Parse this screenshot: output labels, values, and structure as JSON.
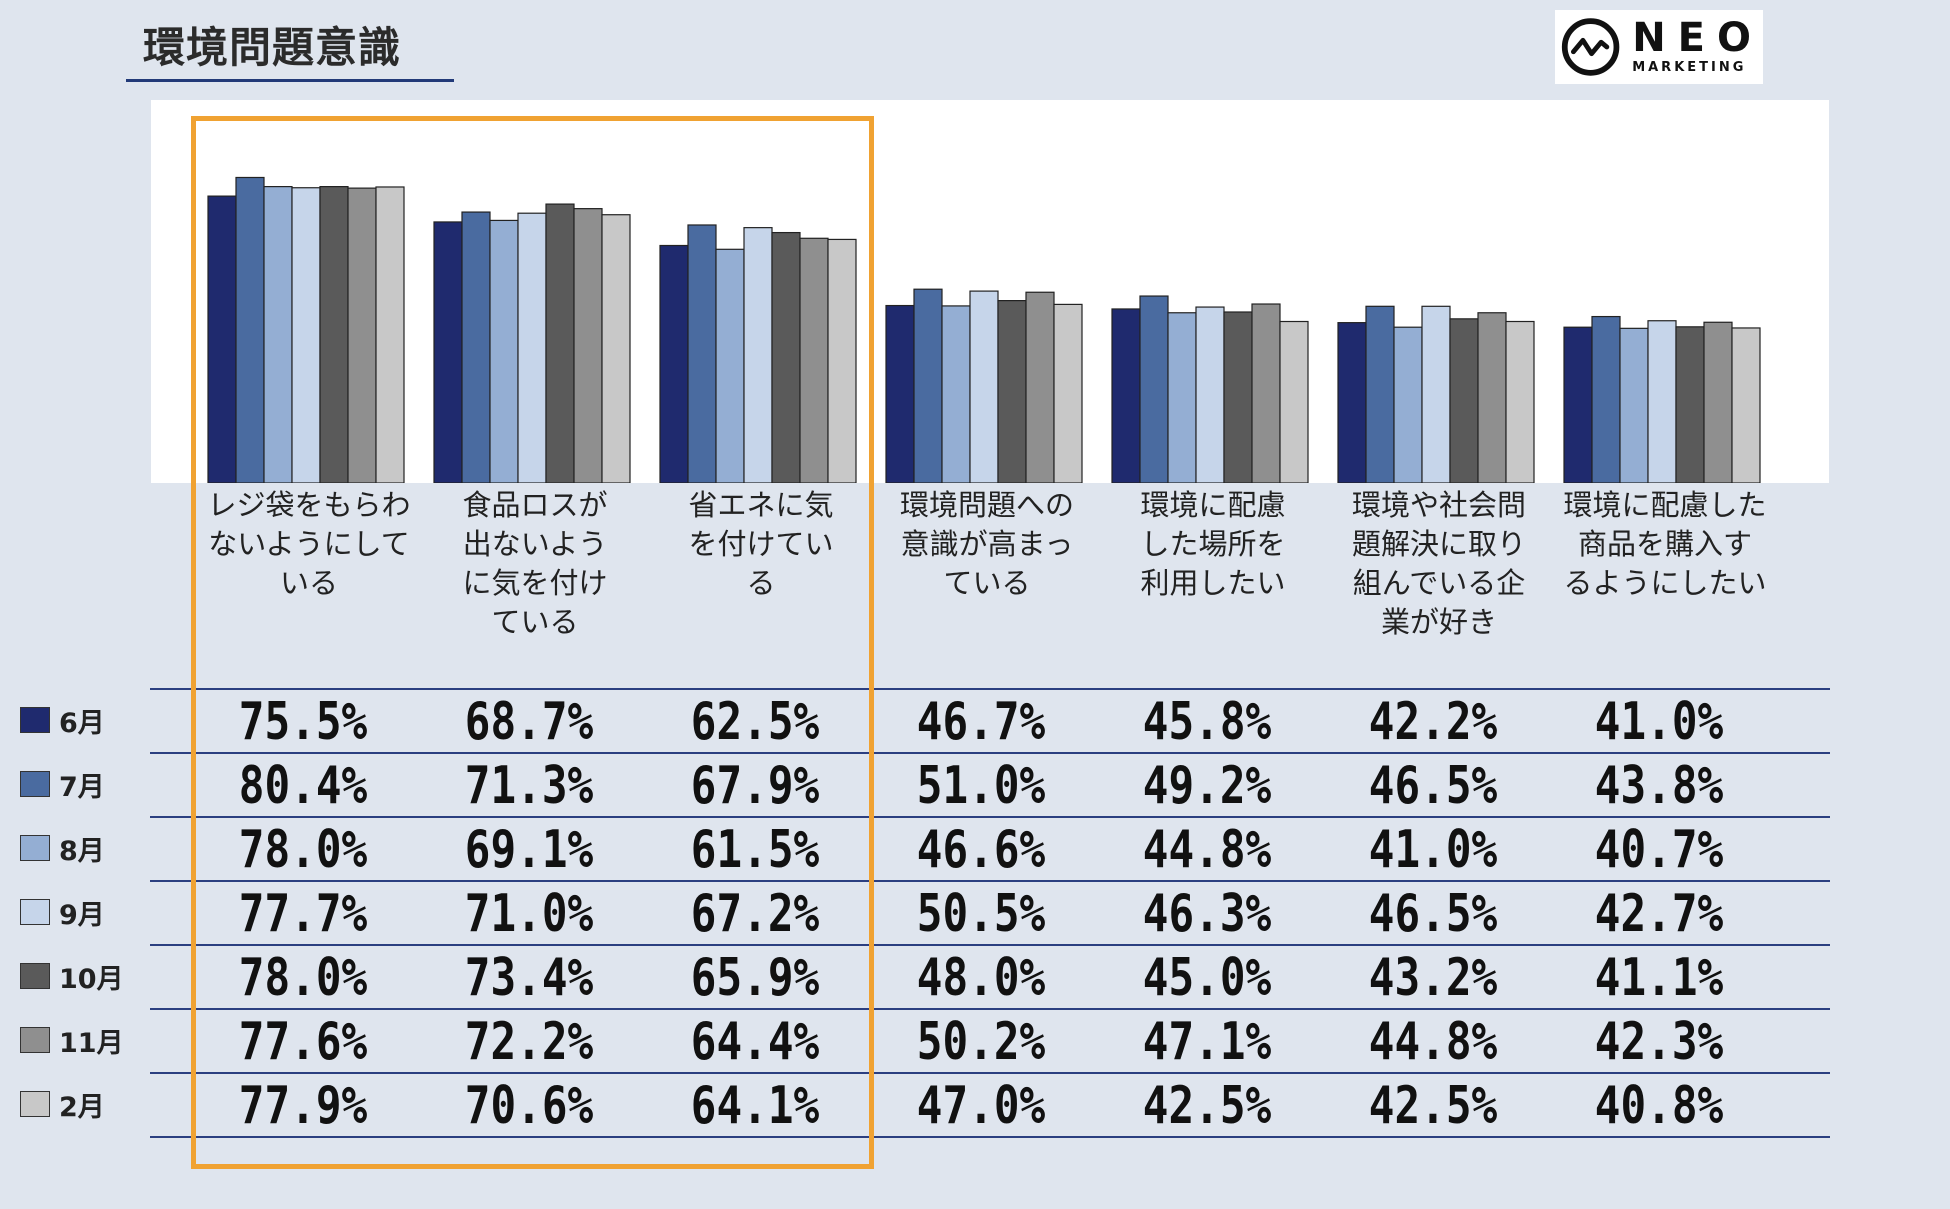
{
  "title": "環境問題意識",
  "logo": {
    "main": "NEO",
    "sub": "MARKETING"
  },
  "chart_data": {
    "type": "bar",
    "title": "環境問題意識",
    "categories": [
      "レジ袋をもらわないようにしている",
      "食品ロスが出ないように気を付けている",
      "省エネに気を付けている",
      "環境問題への意識が高まっている",
      "環境に配慮した場所を利用したい",
      "環境や社会問題解決に取り組んでいる企業が好き",
      "環境に配慮した商品を購入するようにしたい"
    ],
    "category_label_lines": [
      [
        "レジ袋をもらわ",
        "ないようにして",
        "いる"
      ],
      [
        "食品ロスが",
        "出ないよう",
        "に気を付け",
        "ている"
      ],
      [
        "省エネに気",
        "を付けてい",
        "る"
      ],
      [
        "環境問題への",
        "意識が高まっ",
        "ている"
      ],
      [
        "環境に配慮",
        "した場所を",
        "利用したい"
      ],
      [
        "環境や社会問",
        "題解決に取り",
        "組んでいる企",
        "業が好き"
      ],
      [
        "環境に配慮した",
        "商品を購入す",
        "るようにしたい"
      ]
    ],
    "series": [
      {
        "name": "6月",
        "color": "#1f2a6e",
        "values": [
          75.5,
          68.7,
          62.5,
          46.7,
          45.8,
          42.2,
          41.0
        ]
      },
      {
        "name": "7月",
        "color": "#4a6ba0",
        "values": [
          80.4,
          71.3,
          67.9,
          51.0,
          49.2,
          46.5,
          43.8
        ]
      },
      {
        "name": "8月",
        "color": "#94aed3",
        "values": [
          78.0,
          69.1,
          61.5,
          46.6,
          44.8,
          41.0,
          40.7
        ]
      },
      {
        "name": "9月",
        "color": "#c6d5ea",
        "values": [
          77.7,
          71.0,
          67.2,
          50.5,
          46.3,
          46.5,
          42.7
        ]
      },
      {
        "name": "10月",
        "color": "#5a5a5a",
        "values": [
          78.0,
          73.4,
          65.9,
          48.0,
          45.0,
          43.2,
          41.1
        ]
      },
      {
        "name": "11月",
        "color": "#8f8f8f",
        "values": [
          77.6,
          72.2,
          64.4,
          50.2,
          47.1,
          44.8,
          42.3
        ]
      },
      {
        "name": "2月",
        "color": "#c8c8c8",
        "values": [
          77.9,
          70.6,
          64.1,
          47.0,
          42.5,
          42.5,
          40.8
        ]
      }
    ],
    "value_labels": [
      [
        "75.5%",
        "68.7%",
        "62.5%",
        "46.7%",
        "45.8%",
        "42.2%",
        "41.0%"
      ],
      [
        "80.4%",
        "71.3%",
        "67.9%",
        "51.0%",
        "49.2%",
        "46.5%",
        "43.8%"
      ],
      [
        "78.0%",
        "69.1%",
        "61.5%",
        "46.6%",
        "44.8%",
        "41.0%",
        "40.7%"
      ],
      [
        "77.7%",
        "71.0%",
        "67.2%",
        "50.5%",
        "46.3%",
        "46.5%",
        "42.7%"
      ],
      [
        "78.0%",
        "73.4%",
        "65.9%",
        "48.0%",
        "45.0%",
        "43.2%",
        "41.1%"
      ],
      [
        "77.6%",
        "72.2%",
        "64.4%",
        "50.2%",
        "47.1%",
        "44.8%",
        "42.3%"
      ],
      [
        "77.9%",
        "70.6%",
        "64.1%",
        "47.0%",
        "42.5%",
        "42.5%",
        "40.8%"
      ]
    ],
    "ylim": [
      0,
      100
    ],
    "grid": false,
    "legend": "left (data table rows)",
    "highlighted_categories": [
      0,
      1,
      2
    ],
    "highlight_color": "#f0a232"
  }
}
